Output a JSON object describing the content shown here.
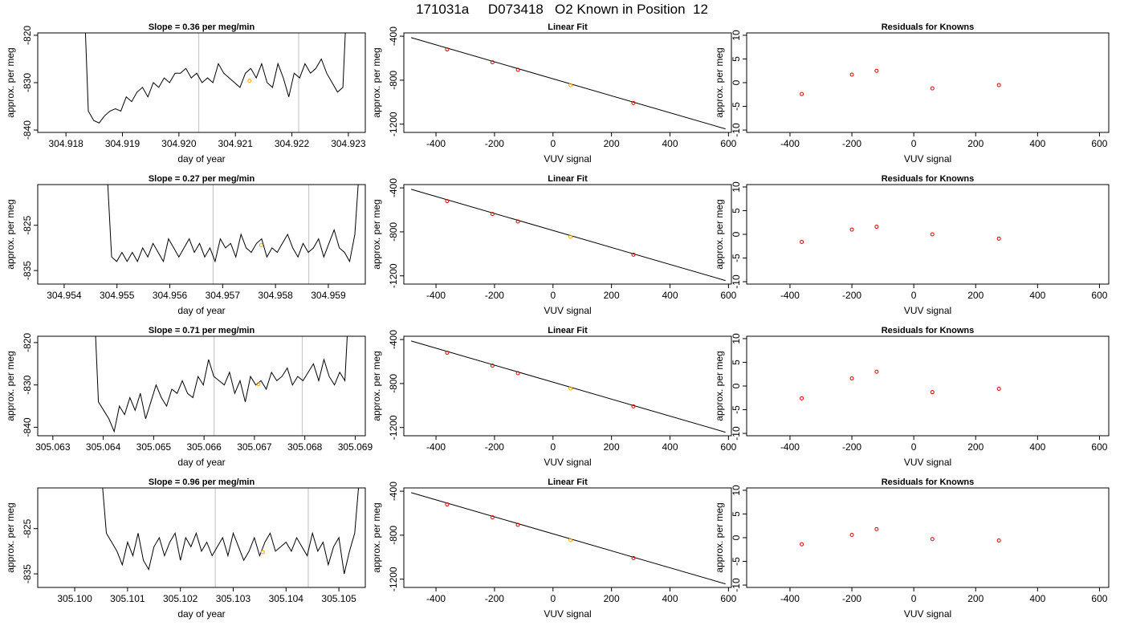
{
  "title": "171031a     D073418   O2 Known in Position  12",
  "colors": {
    "line": "#000000",
    "marker": "#dd0000",
    "highlight": "#ffa500",
    "vline": "#c8c8c8",
    "fit": "#000000"
  },
  "chart_data": [
    {
      "type": "line",
      "title": "Slope =  0.36  per meg/min",
      "xlabel": "day of year",
      "ylabel": "approx. per meg",
      "xlim": [
        304.9175,
        304.9233
      ],
      "ylim": [
        -840.5,
        -819.5
      ],
      "x_ticks": [
        "304.918",
        "304.919",
        "304.920",
        "304.921",
        "304.922",
        "304.923"
      ],
      "x_tick_values": [
        304.918,
        304.919,
        304.92,
        304.921,
        304.922,
        304.923
      ],
      "y_ticks": [
        "-840",
        "-830",
        "-820"
      ],
      "y_tick_values": [
        -840,
        -830,
        -820
      ],
      "vlines": [
        304.92035,
        304.92212
      ],
      "x_start": 304.9183,
      "x_end": 304.923,
      "series": [
        {
          "values": [
            -805,
            -836,
            -838,
            -838.5,
            -837,
            -836,
            -835.5,
            -836,
            -833,
            -834,
            -832,
            -831,
            -833,
            -830,
            -831,
            -829,
            -830,
            -828,
            -828,
            -827,
            -829,
            -828,
            -830,
            -829,
            -830,
            -826,
            -828,
            -829,
            -830,
            -831,
            -828,
            -827,
            -829,
            -826,
            -830,
            -831,
            -826,
            -829,
            -833,
            -828,
            -829,
            -826,
            -828,
            -827,
            -825,
            -828,
            -830,
            -832,
            -831,
            -805
          ]
        }
      ],
      "marker": {
        "x": 304.92125,
        "y": -829.6
      }
    },
    {
      "type": "scatter",
      "title": "Linear Fit",
      "xlabel": "VUV signal",
      "ylabel": "approx. per meg",
      "xlim": [
        -510,
        610
      ],
      "ylim": [
        -1275,
        -370
      ],
      "x_ticks": [
        "-400",
        "-200",
        "0",
        "200",
        "400",
        "600"
      ],
      "x_tick_values": [
        -400,
        -200,
        0,
        200,
        400,
        600
      ],
      "y_ticks": [
        "-1200",
        "-800",
        "-400"
      ],
      "y_tick_values": [
        -1200,
        -800,
        -400
      ],
      "fit_line": {
        "x": [
          -485,
          590
        ],
        "y": [
          -413,
          -1243
        ]
      },
      "points": {
        "x": [
          -362,
          -207,
          -120,
          60,
          275
        ],
        "y": [
          -520,
          -637,
          -706,
          -845,
          -1008
        ]
      },
      "highlight_index": 3
    },
    {
      "type": "scatter",
      "title": "Residuals for Knowns",
      "xlabel": "VUV signal",
      "ylabel": "approx. per meg",
      "xlim": [
        -540,
        630
      ],
      "ylim": [
        -10.5,
        10.5
      ],
      "x_ticks": [
        "-400",
        "-200",
        "0",
        "200",
        "400",
        "600"
      ],
      "x_tick_values": [
        -400,
        -200,
        0,
        200,
        400,
        600
      ],
      "y_ticks": [
        "-10",
        "-5",
        "0",
        "5",
        "10"
      ],
      "y_tick_values": [
        -10,
        -5,
        0,
        5,
        10
      ],
      "points": {
        "x": [
          -362,
          -200,
          -120,
          60,
          275
        ],
        "y": [
          -2.4,
          1.7,
          2.5,
          -1.2,
          -0.5
        ]
      }
    },
    {
      "type": "line",
      "title": "Slope =  0.27  per meg/min",
      "xlabel": "day of year",
      "ylabel": "approx. per meg",
      "xlim": [
        304.9535,
        304.9597
      ],
      "ylim": [
        -838,
        -816
      ],
      "x_ticks": [
        "304.954",
        "304.955",
        "304.956",
        "304.957",
        "304.958",
        "304.959"
      ],
      "x_tick_values": [
        304.954,
        304.955,
        304.956,
        304.957,
        304.958,
        304.959
      ],
      "y_ticks": [
        "-835",
        "-825"
      ],
      "y_tick_values": [
        -835,
        -825
      ],
      "vlines": [
        304.95682,
        304.95863
      ],
      "x_start": 304.9548,
      "x_end": 304.9596,
      "series": [
        {
          "values": [
            -810,
            -832,
            -833,
            -831,
            -833,
            -831,
            -833,
            -830,
            -832,
            -829,
            -831,
            -833,
            -828,
            -830,
            -832,
            -830,
            -828,
            -831,
            -829,
            -832,
            -830,
            -833,
            -828,
            -830,
            -829,
            -832,
            -827,
            -830,
            -831,
            -829,
            -828,
            -832,
            -830,
            -831,
            -829,
            -827,
            -830,
            -832,
            -829,
            -831,
            -830,
            -828,
            -832,
            -829,
            -826,
            -830,
            -831,
            -833,
            -827,
            -810
          ]
        }
      ],
      "marker": {
        "x": 304.95773,
        "y": -829.4
      }
    },
    {
      "type": "scatter",
      "title": "Linear Fit",
      "xlabel": "VUV signal",
      "ylabel": "approx. per meg",
      "xlim": [
        -510,
        610
      ],
      "ylim": [
        -1275,
        -370
      ],
      "x_ticks": [
        "-400",
        "-200",
        "0",
        "200",
        "400",
        "600"
      ],
      "x_tick_values": [
        -400,
        -200,
        0,
        200,
        400,
        600
      ],
      "y_ticks": [
        "-1200",
        "-800",
        "-400"
      ],
      "y_tick_values": [
        -1200,
        -800,
        -400
      ],
      "fit_line": {
        "x": [
          -485,
          590
        ],
        "y": [
          -413,
          -1243
        ]
      },
      "points": {
        "x": [
          -362,
          -207,
          -120,
          60,
          275
        ],
        "y": [
          -520,
          -637,
          -706,
          -845,
          -1008
        ]
      },
      "highlight_index": 3
    },
    {
      "type": "scatter",
      "title": "Residuals for Knowns",
      "xlabel": "VUV signal",
      "ylabel": "approx. per meg",
      "xlim": [
        -540,
        630
      ],
      "ylim": [
        -10.5,
        10.5
      ],
      "x_ticks": [
        "-400",
        "-200",
        "0",
        "200",
        "400",
        "600"
      ],
      "x_tick_values": [
        -400,
        -200,
        0,
        200,
        400,
        600
      ],
      "y_ticks": [
        "-10",
        "-5",
        "0",
        "5",
        "10"
      ],
      "y_tick_values": [
        -10,
        -5,
        0,
        5,
        10
      ],
      "points": {
        "x": [
          -362,
          -200,
          -120,
          60,
          275
        ],
        "y": [
          -1.6,
          1.0,
          1.6,
          0.0,
          -0.9
        ]
      }
    },
    {
      "type": "line",
      "title": "Slope =  0.71  per meg/min",
      "xlabel": "day of year",
      "ylabel": "approx. per meg",
      "xlim": [
        305.0627,
        305.0692
      ],
      "ylim": [
        -842,
        -818.5
      ],
      "x_ticks": [
        "305.063",
        "305.064",
        "305.065",
        "305.066",
        "305.067",
        "305.068",
        "305.069"
      ],
      "x_tick_values": [
        305.063,
        305.064,
        305.065,
        305.066,
        305.067,
        305.068,
        305.069
      ],
      "y_ticks": [
        "-840",
        "-830",
        "-820"
      ],
      "y_tick_values": [
        -840,
        -830,
        -820
      ],
      "vlines": [
        305.0662,
        305.06795
      ],
      "x_start": 305.0638,
      "x_end": 305.0689,
      "series": [
        {
          "values": [
            -805,
            -834,
            -836,
            -838,
            -841,
            -835,
            -837,
            -833,
            -836,
            -832,
            -838,
            -834,
            -830,
            -833,
            -835,
            -831,
            -832,
            -829,
            -832,
            -833,
            -828,
            -830,
            -824,
            -828,
            -829,
            -830,
            -827,
            -832,
            -829,
            -834,
            -828,
            -830,
            -829,
            -831,
            -827,
            -829,
            -828,
            -826,
            -830,
            -828,
            -829,
            -827,
            -825,
            -829,
            -824,
            -828,
            -830,
            -827,
            -829,
            -805
          ]
        }
      ],
      "marker": {
        "x": 305.06708,
        "y": -829.8
      }
    },
    {
      "type": "scatter",
      "title": "Linear Fit",
      "xlabel": "VUV signal",
      "ylabel": "approx. per meg",
      "xlim": [
        -510,
        610
      ],
      "ylim": [
        -1275,
        -370
      ],
      "x_ticks": [
        "-400",
        "-200",
        "0",
        "200",
        "400",
        "600"
      ],
      "x_tick_values": [
        -400,
        -200,
        0,
        200,
        400,
        600
      ],
      "y_ticks": [
        "-1200",
        "-800",
        "-400"
      ],
      "y_tick_values": [
        -1200,
        -800,
        -400
      ],
      "fit_line": {
        "x": [
          -485,
          590
        ],
        "y": [
          -413,
          -1243
        ]
      },
      "points": {
        "x": [
          -362,
          -207,
          -120,
          60,
          275
        ],
        "y": [
          -520,
          -637,
          -706,
          -845,
          -1008
        ]
      },
      "highlight_index": 3
    },
    {
      "type": "scatter",
      "title": "Residuals for Knowns",
      "xlabel": "VUV signal",
      "ylabel": "approx. per meg",
      "xlim": [
        -540,
        630
      ],
      "ylim": [
        -10.5,
        10.5
      ],
      "x_ticks": [
        "-400",
        "-200",
        "0",
        "200",
        "400",
        "600"
      ],
      "x_tick_values": [
        -400,
        -200,
        0,
        200,
        400,
        600
      ],
      "y_ticks": [
        "-10",
        "-5",
        "0",
        "5",
        "10"
      ],
      "y_tick_values": [
        -10,
        -5,
        0,
        5,
        10
      ],
      "points": {
        "x": [
          -362,
          -200,
          -120,
          60,
          275
        ],
        "y": [
          -2.6,
          1.6,
          3.0,
          -1.3,
          -0.6
        ]
      }
    },
    {
      "type": "line",
      "title": "Slope =  0.96  per meg/min",
      "xlabel": "day of year",
      "ylabel": "approx. per meg",
      "xlim": [
        305.0993,
        305.1055
      ],
      "ylim": [
        -838,
        -816
      ],
      "x_ticks": [
        "305.100",
        "305.101",
        "305.102",
        "305.103",
        "305.104",
        "305.105"
      ],
      "x_tick_values": [
        305.1,
        305.101,
        305.102,
        305.103,
        305.104,
        305.105
      ],
      "y_ticks": [
        "-835",
        "-825"
      ],
      "y_tick_values": [
        -835,
        -825
      ],
      "vlines": [
        305.10266,
        305.10442
      ],
      "x_start": 305.1005,
      "x_end": 305.1054,
      "series": [
        {
          "values": [
            -812,
            -826,
            -828,
            -830,
            -833,
            -828,
            -831,
            -826,
            -832,
            -834,
            -829,
            -827,
            -831,
            -828,
            -826,
            -832,
            -827,
            -829,
            -826,
            -830,
            -828,
            -831,
            -829,
            -827,
            -831,
            -826,
            -829,
            -832,
            -830,
            -827,
            -831,
            -828,
            -826,
            -830,
            -829,
            -828,
            -830,
            -827,
            -829,
            -831,
            -826,
            -830,
            -828,
            -833,
            -829,
            -827,
            -835,
            -830,
            -826,
            -812
          ]
        }
      ],
      "marker": {
        "x": 305.10356,
        "y": -830.2
      }
    },
    {
      "type": "scatter",
      "title": "Linear Fit",
      "xlabel": "VUV signal",
      "ylabel": "approx. per meg",
      "xlim": [
        -510,
        610
      ],
      "ylim": [
        -1275,
        -370
      ],
      "x_ticks": [
        "-400",
        "-200",
        "0",
        "200",
        "400",
        "600"
      ],
      "x_tick_values": [
        -400,
        -200,
        0,
        200,
        400,
        600
      ],
      "y_ticks": [
        "-1200",
        "-800",
        "-400"
      ],
      "y_tick_values": [
        -1200,
        -800,
        -400
      ],
      "fit_line": {
        "x": [
          -485,
          590
        ],
        "y": [
          -413,
          -1243
        ]
      },
      "points": {
        "x": [
          -362,
          -207,
          -120,
          60,
          275
        ],
        "y": [
          -520,
          -637,
          -706,
          -845,
          -1008
        ]
      },
      "highlight_index": 3
    },
    {
      "type": "scatter",
      "title": "Residuals for Knowns",
      "xlabel": "VUV signal",
      "ylabel": "approx. per meg",
      "xlim": [
        -540,
        630
      ],
      "ylim": [
        -10.5,
        10.5
      ],
      "x_ticks": [
        "-400",
        "-200",
        "0",
        "200",
        "400",
        "600"
      ],
      "x_tick_values": [
        -400,
        -200,
        0,
        200,
        400,
        600
      ],
      "y_ticks": [
        "-10",
        "-5",
        "0",
        "5",
        "10"
      ],
      "y_tick_values": [
        -10,
        -5,
        0,
        5,
        10
      ],
      "points": {
        "x": [
          -362,
          -200,
          -120,
          60,
          275
        ],
        "y": [
          -1.4,
          0.6,
          1.8,
          -0.3,
          -0.6
        ]
      }
    }
  ]
}
